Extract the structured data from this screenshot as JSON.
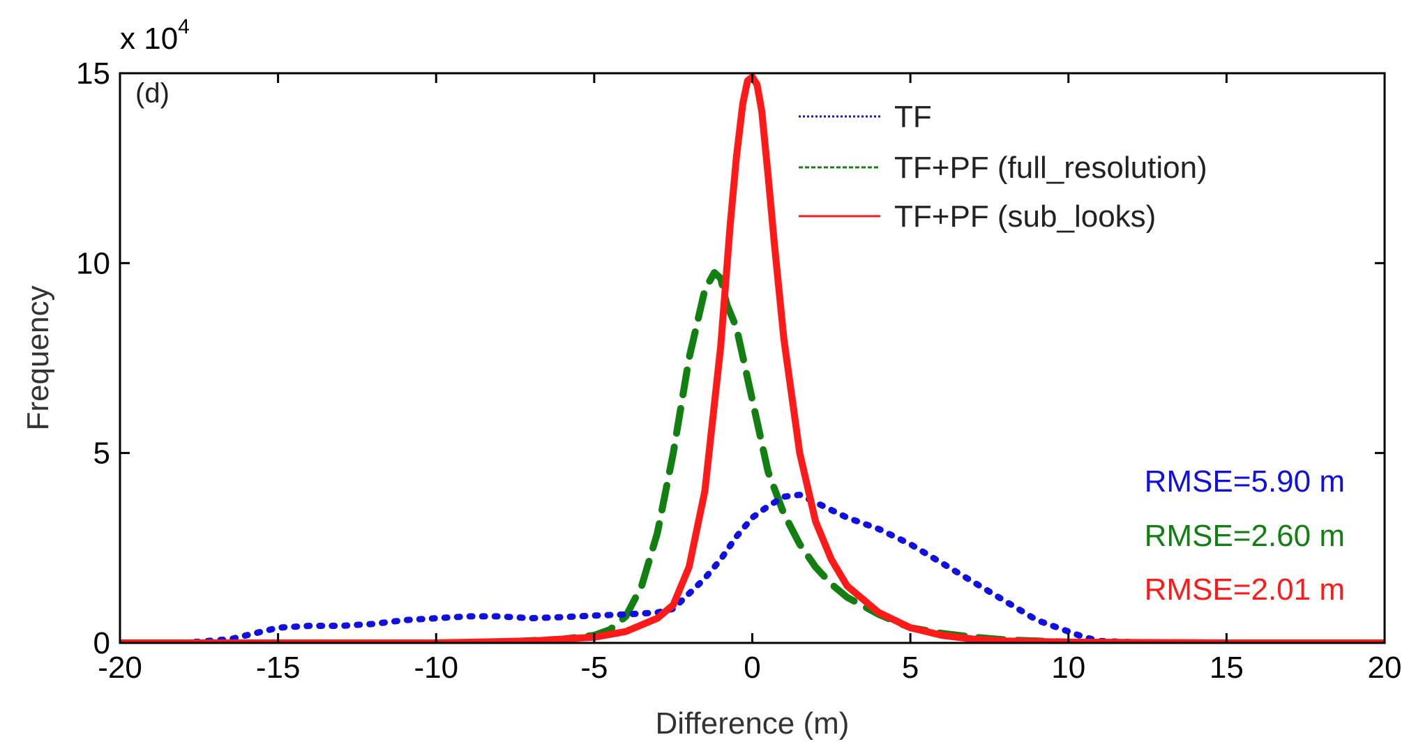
{
  "chart_data": {
    "type": "line",
    "panel_label": "(d)",
    "xlabel": "Difference (m)",
    "ylabel": "Frequency",
    "y_multiplier_label": {
      "base": "x 10",
      "exponent": "4"
    },
    "xlim": [
      -20,
      20
    ],
    "ylim": [
      0,
      15
    ],
    "xticks": [
      -20,
      -15,
      -10,
      -5,
      0,
      5,
      10,
      15,
      20
    ],
    "yticks": [
      0,
      5,
      10,
      15
    ],
    "legend_position": "top-center",
    "series": [
      {
        "name": "TF",
        "color": "#1010e0",
        "style": "dotted",
        "x": [
          -20,
          -18,
          -16.5,
          -16,
          -15.5,
          -15,
          -14,
          -13,
          -12,
          -11,
          -10,
          -9,
          -8,
          -7,
          -6,
          -5,
          -4,
          -3,
          -2.5,
          -2,
          -1.5,
          -1,
          -0.5,
          0,
          0.5,
          1,
          1.5,
          2,
          3,
          4,
          5,
          6,
          7,
          8,
          9,
          10,
          10.5,
          11,
          12,
          13,
          15,
          20
        ],
        "values": [
          0,
          0,
          0.1,
          0.2,
          0.3,
          0.4,
          0.45,
          0.45,
          0.5,
          0.6,
          0.65,
          0.7,
          0.7,
          0.65,
          0.68,
          0.72,
          0.75,
          0.8,
          0.9,
          1.3,
          1.7,
          2.2,
          2.8,
          3.3,
          3.6,
          3.85,
          3.9,
          3.7,
          3.3,
          3.0,
          2.6,
          2.1,
          1.6,
          1.1,
          0.6,
          0.3,
          0.15,
          0.05,
          0.02,
          0,
          0,
          0
        ]
      },
      {
        "name": "TF+PF (full_resolution)",
        "color": "#118011",
        "style": "dashed",
        "x": [
          -20,
          -10,
          -8,
          -6,
          -5,
          -4.5,
          -4,
          -3.5,
          -3,
          -2.5,
          -2,
          -1.5,
          -1.2,
          -1,
          -0.8,
          -0.5,
          0,
          0.5,
          1,
          1.5,
          2,
          2.5,
          3,
          4,
          5,
          6,
          7,
          8,
          10,
          12,
          15,
          20
        ],
        "values": [
          0,
          0,
          0.02,
          0.1,
          0.2,
          0.35,
          0.7,
          1.5,
          2.9,
          5.0,
          7.5,
          9.3,
          9.75,
          9.6,
          8.9,
          8.3,
          6.4,
          4.5,
          3.4,
          2.6,
          2.0,
          1.55,
          1.2,
          0.75,
          0.4,
          0.25,
          0.15,
          0.08,
          0.02,
          0.01,
          0,
          0
        ]
      },
      {
        "name": "TF+PF (sub_looks)",
        "color": "#ff1a1a",
        "style": "solid",
        "x": [
          -20,
          -10,
          -7,
          -5,
          -4,
          -3,
          -2.5,
          -2,
          -1.5,
          -1,
          -0.7,
          -0.5,
          -0.3,
          -0.15,
          0,
          0.15,
          0.3,
          0.5,
          0.7,
          1,
          1.5,
          2,
          2.5,
          3,
          4,
          5,
          6,
          7,
          8,
          10,
          15,
          20
        ],
        "values": [
          0,
          0,
          0.05,
          0.15,
          0.3,
          0.65,
          1.0,
          2.0,
          4.0,
          7.8,
          11.0,
          12.8,
          14.2,
          14.8,
          14.9,
          14.7,
          14.0,
          12.3,
          10.5,
          8.0,
          5.0,
          3.2,
          2.2,
          1.5,
          0.8,
          0.4,
          0.2,
          0.1,
          0.05,
          0.02,
          0,
          0
        ]
      }
    ],
    "annotations": [
      {
        "text": "RMSE=5.90 m",
        "color": "#1010e0"
      },
      {
        "text": "RMSE=2.60 m",
        "color": "#118011"
      },
      {
        "text": "RMSE=2.01 m",
        "color": "#ff1a1a"
      }
    ]
  }
}
